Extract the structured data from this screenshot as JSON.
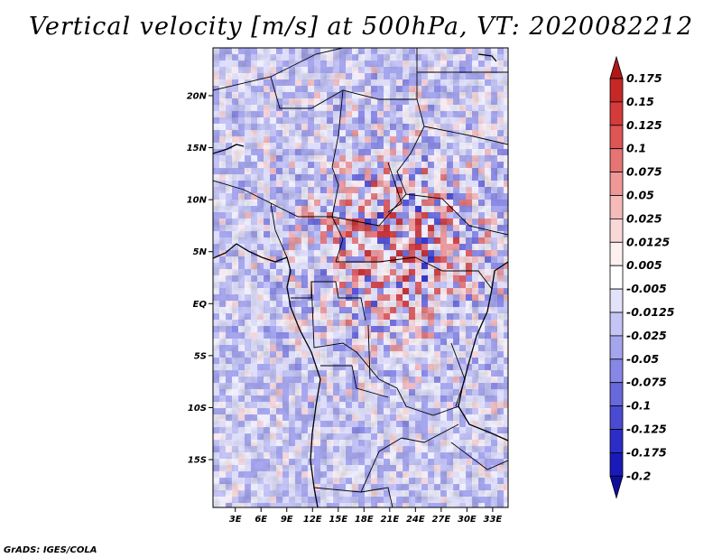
{
  "title": "Vertical velocity [m/s] at 500hPa, VT: 2020082212",
  "footer": "GrADS: IGES/COLA",
  "axes": {
    "lat_ticks": [
      "20N",
      "15N",
      "10N",
      "5N",
      "EQ",
      "5S",
      "10S",
      "15S"
    ],
    "lat_values": [
      20,
      15,
      10,
      5,
      0,
      -5,
      -10,
      -15
    ],
    "lon_ticks": [
      "3E",
      "6E",
      "9E",
      "12E",
      "15E",
      "18E",
      "21E",
      "24E",
      "27E",
      "30E",
      "33E"
    ],
    "lon_values": [
      3,
      6,
      9,
      12,
      15,
      18,
      21,
      24,
      27,
      30,
      33
    ]
  },
  "colorbar": {
    "labels": [
      "0.175",
      "0.15",
      "0.125",
      "0.1",
      "0.075",
      "0.05",
      "0.025",
      "0.0125",
      "0.005",
      "-0.005",
      "-0.0125",
      "-0.025",
      "-0.05",
      "-0.075",
      "-0.1",
      "-0.125",
      "-0.175",
      "-0.2"
    ],
    "colors": [
      "#b01818",
      "#c62828",
      "#d43b3b",
      "#de5555",
      "#e67474",
      "#ee9898",
      "#f5baba",
      "#fad8d8",
      "#fdf0f0",
      "#ffffff",
      "#e2e2fb",
      "#c4c4f5",
      "#a5a5ee",
      "#8787e6",
      "#6868dd",
      "#4a4ad3",
      "#2c2cc8",
      "#1a1ab8",
      "#0e0e9c"
    ]
  }
}
